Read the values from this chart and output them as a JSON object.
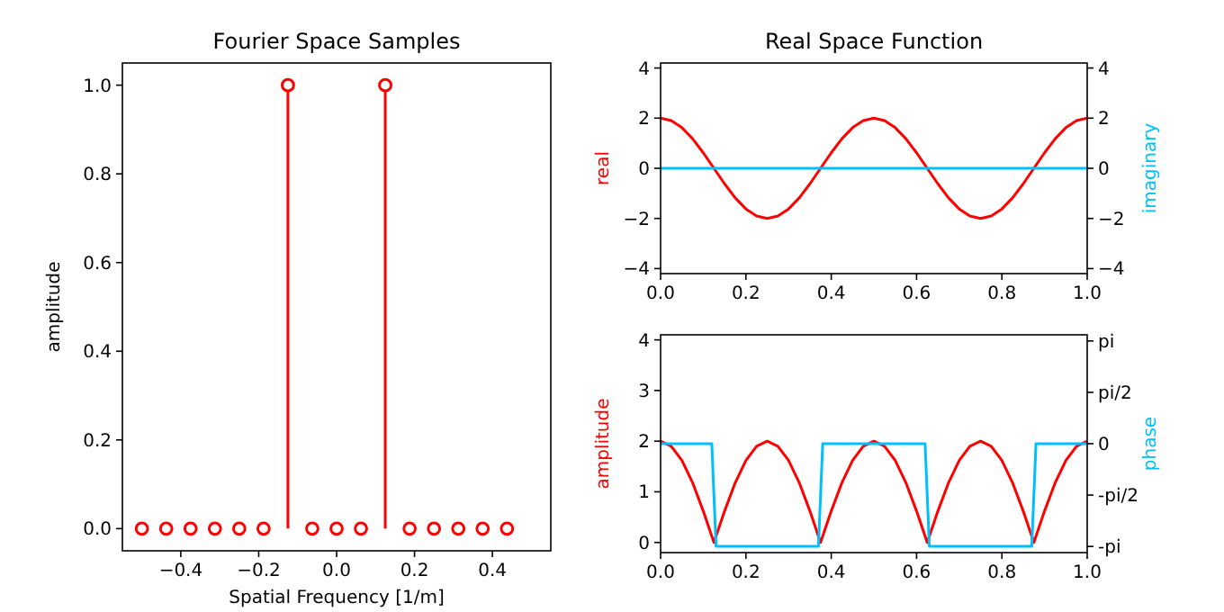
{
  "chart_data": [
    {
      "type": "lollipop",
      "title": "Fourier Space Samples",
      "xlabel": "Spatial Frequency [1/m]",
      "ylabel": "amplitude",
      "marker": "circle",
      "grid": false,
      "x": [
        -0.5,
        -0.4375,
        -0.375,
        -0.3125,
        -0.25,
        -0.1875,
        -0.125,
        -0.0625,
        0,
        0.0625,
        0.125,
        0.1875,
        0.25,
        0.3125,
        0.375,
        0.4375
      ],
      "series": [
        {
          "color": "#ff0000",
          "values": [
            0,
            0,
            0,
            0,
            0,
            0,
            1,
            0,
            0,
            0,
            1,
            0,
            0,
            0,
            0,
            0
          ]
        }
      ],
      "xlim": [
        -0.55,
        0.55
      ],
      "xticks": [
        {
          "value": -0.4,
          "label": "−0.4"
        },
        {
          "value": -0.2,
          "label": "−0.2"
        },
        {
          "value": 0,
          "label": "0.0"
        },
        {
          "value": 0.2,
          "label": "0.2"
        },
        {
          "value": 0.4,
          "label": "0.4"
        }
      ],
      "ylim": [
        -0.05,
        1.05
      ],
      "yticks": [
        {
          "value": 0,
          "label": "0.0"
        },
        {
          "value": 0.2,
          "label": "0.2"
        },
        {
          "value": 0.4,
          "label": "0.4"
        },
        {
          "value": 0.6,
          "label": "0.6"
        },
        {
          "value": 0.8,
          "label": "0.8"
        },
        {
          "value": 1,
          "label": "1.0"
        }
      ]
    },
    {
      "type": "line",
      "title": "Real Space Function",
      "ylabel": "real",
      "y2label": "imaginary",
      "grid": false,
      "x": [
        0,
        0.025,
        0.05,
        0.075,
        0.1,
        0.125,
        0.15,
        0.175,
        0.2,
        0.225,
        0.25,
        0.275,
        0.3,
        0.325,
        0.35,
        0.375,
        0.4,
        0.425,
        0.45,
        0.475,
        0.5,
        0.525,
        0.55,
        0.575,
        0.6,
        0.625,
        0.65,
        0.675,
        0.7,
        0.725,
        0.75,
        0.775,
        0.8,
        0.825,
        0.85,
        0.875,
        0.9,
        0.925,
        0.95,
        0.975,
        1
      ],
      "series": [
        {
          "color": "#ff0000",
          "values": [
            2,
            1.9,
            1.62,
            1.18,
            0.62,
            0,
            -0.62,
            -1.18,
            -1.62,
            -1.9,
            -2,
            -1.9,
            -1.62,
            -1.18,
            -0.62,
            0,
            0.62,
            1.18,
            1.62,
            1.9,
            2,
            1.9,
            1.62,
            1.18,
            0.62,
            0,
            -0.62,
            -1.18,
            -1.62,
            -1.9,
            -2,
            -1.9,
            -1.62,
            -1.18,
            -0.62,
            0,
            0.62,
            1.18,
            1.62,
            1.9,
            2
          ]
        },
        {
          "color": "#00bfff",
          "axis": "y2",
          "x": [
            0,
            1
          ],
          "values": [
            0,
            0
          ]
        }
      ],
      "xlim": [
        0,
        1
      ],
      "xticks": [
        {
          "value": 0,
          "label": "0.0"
        },
        {
          "value": 0.2,
          "label": "0.2"
        },
        {
          "value": 0.4,
          "label": "0.4"
        },
        {
          "value": 0.6,
          "label": "0.6"
        },
        {
          "value": 0.8,
          "label": "0.8"
        },
        {
          "value": 1,
          "label": "1.0"
        }
      ],
      "ylim": [
        -4.2,
        4.2
      ],
      "yticks": [
        {
          "value": -4,
          "label": "−4"
        },
        {
          "value": -2,
          "label": "−2"
        },
        0,
        2,
        4
      ],
      "y2lim": [
        -4.2,
        4.2
      ],
      "y2ticks": [
        {
          "value": -4,
          "label": "−4"
        },
        {
          "value": -2,
          "label": "−2"
        },
        0,
        2,
        4
      ]
    },
    {
      "type": "line",
      "ylabel": "amplitude",
      "y2label": "phase",
      "grid": false,
      "x": [
        0,
        0.025,
        0.05,
        0.075,
        0.1,
        0.125,
        0.15,
        0.175,
        0.2,
        0.225,
        0.25,
        0.275,
        0.3,
        0.325,
        0.35,
        0.375,
        0.4,
        0.425,
        0.45,
        0.475,
        0.5,
        0.525,
        0.55,
        0.575,
        0.6,
        0.625,
        0.65,
        0.675,
        0.7,
        0.725,
        0.75,
        0.775,
        0.8,
        0.825,
        0.85,
        0.875,
        0.9,
        0.925,
        0.95,
        0.975,
        1
      ],
      "series": [
        {
          "color": "#ff0000",
          "values": [
            2,
            1.9,
            1.62,
            1.18,
            0.62,
            0,
            0.62,
            1.18,
            1.62,
            1.9,
            2,
            1.9,
            1.62,
            1.18,
            0.62,
            0,
            0.62,
            1.18,
            1.62,
            1.9,
            2,
            1.9,
            1.62,
            1.18,
            0.62,
            0,
            0.62,
            1.18,
            1.62,
            1.9,
            2,
            1.9,
            1.62,
            1.18,
            0.62,
            0,
            0.62,
            1.18,
            1.62,
            1.9,
            2
          ]
        },
        {
          "color": "#00bfff",
          "axis": "y2",
          "x": [
            0,
            0.12,
            0.13,
            0.37,
            0.38,
            0.62,
            0.63,
            0.87,
            0.88,
            1
          ],
          "values": [
            0,
            0,
            -3.14,
            -3.14,
            0,
            0,
            -3.14,
            -3.14,
            0,
            0
          ]
        }
      ],
      "xlim": [
        0,
        1
      ],
      "xticks": [
        {
          "value": 0,
          "label": "0.0"
        },
        {
          "value": 0.2,
          "label": "0.2"
        },
        {
          "value": 0.4,
          "label": "0.4"
        },
        {
          "value": 0.6,
          "label": "0.6"
        },
        {
          "value": 0.8,
          "label": "0.8"
        },
        {
          "value": 1,
          "label": "1.0"
        }
      ],
      "ylim": [
        -0.2,
        4.1
      ],
      "yticks": [
        0,
        1,
        2,
        3,
        4
      ],
      "y2lim": [
        -3.33,
        3.33
      ],
      "y2ticks": [
        {
          "value": -3.1416,
          "label": "-pi"
        },
        {
          "value": -1.5708,
          "label": "-pi/2"
        },
        {
          "value": 0,
          "label": "0"
        },
        {
          "value": 1.5708,
          "label": "pi/2"
        },
        {
          "value": 3.1416,
          "label": "pi"
        }
      ]
    }
  ]
}
